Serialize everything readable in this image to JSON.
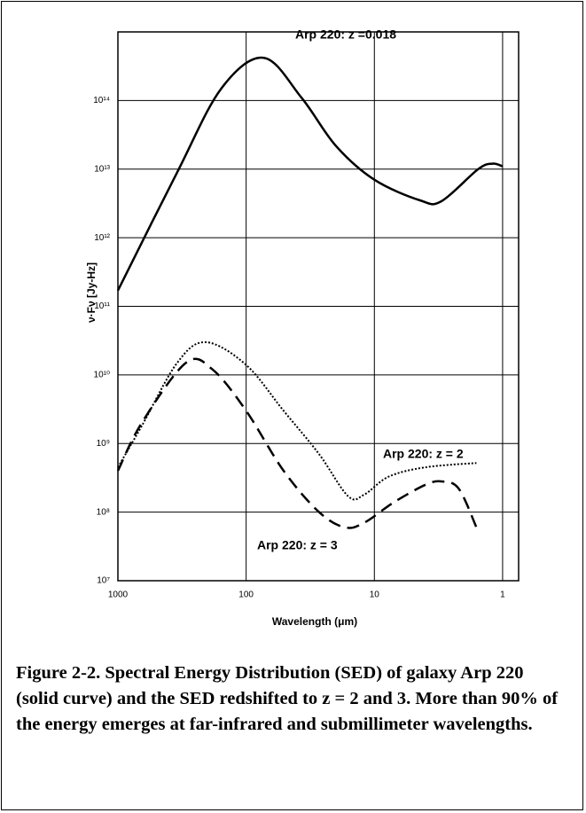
{
  "chart_data": {
    "type": "line",
    "xlabel": "Wavelength (μm)",
    "ylabel": "ν·Fν [Jy-Hz]",
    "xscale": "log",
    "yscale": "log",
    "grid": true,
    "xlim": [
      1000,
      0.75
    ],
    "xticks": [
      1000,
      100,
      10,
      1
    ],
    "ylim": [
      10000000,
      1000000000000000
    ],
    "yticks": [
      {
        "value": 10000000,
        "label": "10⁷"
      },
      {
        "value": 100000000,
        "label": "10⁸"
      },
      {
        "value": 1000000000,
        "label": "10⁹"
      },
      {
        "value": 10000000000,
        "label": "10¹⁰"
      },
      {
        "value": 100000000000,
        "label": "10¹¹"
      },
      {
        "value": 1000000000000,
        "label": "10¹²"
      },
      {
        "value": 10000000000000,
        "label": "10¹³"
      },
      {
        "value": 100000000000000,
        "label": "10¹⁴"
      }
    ],
    "series": [
      {
        "name": "Arp 220:  z =0.018",
        "color": "#000000",
        "style": "solid",
        "x": [
          1000,
          345,
          156,
          73,
          37,
          20,
          10,
          4.4,
          3,
          1.55,
          1.2,
          1.0
        ],
        "values": [
          170000000000,
          9000000000000,
          150000000000000,
          420000000000000,
          110000000000000,
          22000000000000,
          7000000000000,
          3500000000000,
          3400000000000,
          10000000000000,
          12000000000000,
          11000000000000
        ]
      },
      {
        "name": "Arp 220:  z = 2",
        "color": "#000000",
        "style": "dotted",
        "x": [
          1000,
          652,
          345,
          207,
          100,
          51,
          27,
          16,
          12,
          7.7,
          4,
          1.6
        ],
        "values": [
          450000000,
          1800000000,
          15000000000,
          30000000000,
          14000000000,
          3000000000,
          700000000,
          170000000,
          180000000,
          330000000,
          450000000,
          520000000
        ]
      },
      {
        "name": "Arp 220:  z = 3",
        "color": "#000000",
        "style": "dashed",
        "x": [
          1000,
          652,
          295,
          183,
          100,
          51,
          27,
          17,
          12,
          7,
          4,
          3,
          2.2,
          1.6
        ],
        "values": [
          400000000,
          2000000000,
          15000000000,
          12000000000,
          3000000000,
          400000000,
          100000000,
          60000000,
          70000000,
          140000000,
          250000000,
          280000000,
          220000000,
          60000000
        ]
      }
    ]
  },
  "caption": "Figure 2-2.  Spectral Energy Distribution (SED) of galaxy Arp 220 (solid curve) and the SED redshifted to z = 2 and 3.  More than 90% of the energy emerges at far-infrared and submillimeter wavelengths."
}
